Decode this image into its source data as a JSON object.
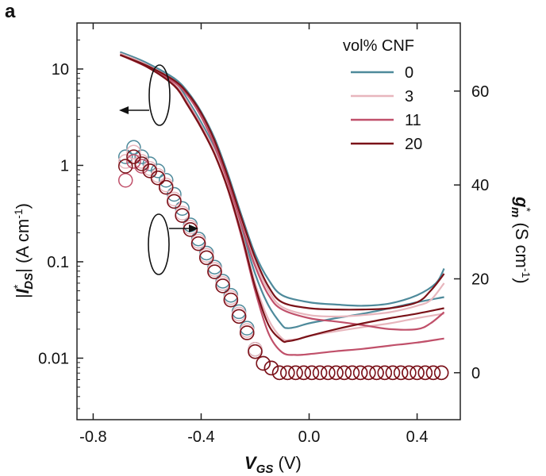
{
  "panel_label": "a",
  "chart_data": {
    "type": "line",
    "xlabel_symbol": "V",
    "xlabel_sub": "GS",
    "xlabel_unit": " (V)",
    "ylabel_left_prefix": "|",
    "ylabel_left_symbol": "I",
    "ylabel_left_sub": "DS",
    "ylabel_left_sup": "*",
    "ylabel_left_unit": "| (A cm",
    "ylabel_left_unit_exp": "-1",
    "ylabel_left_unit_close": ")",
    "ylabel_right_symbol": "g",
    "ylabel_right_sub": "m",
    "ylabel_right_sup": "*",
    "ylabel_right_unit": " (S cm",
    "ylabel_right_unit_exp": "-1",
    "ylabel_right_unit_close": ")",
    "x_ticks": [
      "-0.8",
      "-0.4",
      "0.0",
      "0.4"
    ],
    "x_tick_values": [
      -0.8,
      -0.4,
      0.0,
      0.4
    ],
    "y_left_ticks": [
      "10",
      "1",
      "0.1",
      "0.01"
    ],
    "y_left_tick_values": [
      10,
      1,
      0.1,
      0.01
    ],
    "y_right_ticks": [
      "60",
      "40",
      "20",
      "0"
    ],
    "y_right_tick_values": [
      60,
      40,
      20,
      0
    ],
    "xlim": [
      -0.86,
      0.56
    ],
    "ylim_left_log": [
      0.0023,
      30
    ],
    "y_left_scale": "log",
    "ylim_right": [
      -10,
      74.5
    ],
    "legend_title": "vol% CNF",
    "legend_position": "top-right",
    "series": [
      {
        "name": "0",
        "color": "#4e8a9b",
        "iv_fwd": [
          [
            -0.7,
            15
          ],
          [
            -0.6,
            11.5
          ],
          [
            -0.5,
            7.5
          ],
          [
            -0.45,
            4.8
          ],
          [
            -0.4,
            2.8
          ],
          [
            -0.35,
            1.5
          ],
          [
            -0.3,
            0.65
          ],
          [
            -0.25,
            0.22
          ],
          [
            -0.2,
            0.075
          ],
          [
            -0.15,
            0.035
          ],
          [
            -0.1,
            0.022
          ],
          [
            -0.08,
            0.0205
          ],
          [
            -0.05,
            0.021
          ],
          [
            0.0,
            0.023
          ],
          [
            0.1,
            0.026
          ],
          [
            0.2,
            0.029
          ],
          [
            0.3,
            0.033
          ],
          [
            0.4,
            0.038
          ],
          [
            0.5,
            0.043
          ]
        ],
        "iv_rev": [
          [
            0.5,
            0.085
          ],
          [
            0.47,
            0.06
          ],
          [
            0.4,
            0.045
          ],
          [
            0.3,
            0.037
          ],
          [
            0.2,
            0.035
          ],
          [
            0.1,
            0.036
          ],
          [
            0.0,
            0.038
          ],
          [
            -0.1,
            0.045
          ],
          [
            -0.15,
            0.065
          ],
          [
            -0.2,
            0.12
          ],
          [
            -0.25,
            0.3
          ],
          [
            -0.3,
            0.8
          ],
          [
            -0.35,
            1.9
          ],
          [
            -0.4,
            3.6
          ],
          [
            -0.45,
            5.8
          ],
          [
            -0.5,
            8
          ],
          [
            -0.6,
            11.5
          ],
          [
            -0.7,
            15
          ]
        ],
        "gm": [
          [
            -0.68,
            46
          ],
          [
            -0.65,
            48
          ],
          [
            -0.62,
            46
          ],
          [
            -0.59,
            44.5
          ],
          [
            -0.56,
            43
          ],
          [
            -0.53,
            41
          ],
          [
            -0.5,
            38
          ],
          [
            -0.47,
            35
          ],
          [
            -0.44,
            31.5
          ],
          [
            -0.41,
            28.5
          ],
          [
            -0.38,
            25.5
          ],
          [
            -0.35,
            22.5
          ],
          [
            -0.32,
            19.5
          ],
          [
            -0.29,
            16.5
          ],
          [
            -0.26,
            13
          ],
          [
            -0.23,
            9.5
          ],
          [
            -0.2,
            5
          ],
          [
            -0.17,
            2
          ],
          [
            -0.14,
            1
          ]
        ]
      },
      {
        "name": "3",
        "color": "#e7b6bd",
        "iv_fwd": [
          [
            -0.7,
            14.5
          ],
          [
            -0.6,
            11
          ],
          [
            -0.5,
            7
          ],
          [
            -0.45,
            4.5
          ],
          [
            -0.4,
            2.6
          ],
          [
            -0.35,
            1.4
          ],
          [
            -0.3,
            0.6
          ],
          [
            -0.25,
            0.2
          ],
          [
            -0.2,
            0.06
          ],
          [
            -0.15,
            0.025
          ],
          [
            -0.1,
            0.016
          ],
          [
            -0.07,
            0.0155
          ],
          [
            -0.03,
            0.016
          ],
          [
            0.0,
            0.017
          ],
          [
            0.1,
            0.019
          ],
          [
            0.2,
            0.021
          ],
          [
            0.3,
            0.023
          ],
          [
            0.4,
            0.026
          ],
          [
            0.5,
            0.029
          ]
        ],
        "iv_rev": [
          [
            0.5,
            0.06
          ],
          [
            0.45,
            0.04
          ],
          [
            0.4,
            0.035
          ],
          [
            0.3,
            0.03
          ],
          [
            0.2,
            0.028
          ],
          [
            0.1,
            0.027
          ],
          [
            0.0,
            0.028
          ],
          [
            -0.1,
            0.034
          ],
          [
            -0.15,
            0.05
          ],
          [
            -0.2,
            0.1
          ],
          [
            -0.25,
            0.26
          ],
          [
            -0.3,
            0.7
          ],
          [
            -0.35,
            1.7
          ],
          [
            -0.4,
            3.4
          ],
          [
            -0.45,
            5.5
          ],
          [
            -0.5,
            7.6
          ],
          [
            -0.6,
            11
          ],
          [
            -0.7,
            14.5
          ]
        ],
        "gm": [
          [
            -0.68,
            45
          ],
          [
            -0.65,
            47
          ],
          [
            -0.62,
            45
          ],
          [
            -0.59,
            43.5
          ],
          [
            -0.56,
            42
          ],
          [
            -0.53,
            40
          ],
          [
            -0.5,
            37
          ],
          [
            -0.47,
            34
          ],
          [
            -0.44,
            31
          ],
          [
            -0.41,
            28
          ],
          [
            -0.38,
            25
          ],
          [
            -0.35,
            22
          ],
          [
            -0.32,
            19
          ],
          [
            -0.29,
            16
          ],
          [
            -0.26,
            12.5
          ],
          [
            -0.23,
            9
          ],
          [
            -0.2,
            5
          ],
          [
            -0.17,
            2
          ],
          [
            -0.14,
            1
          ]
        ]
      },
      {
        "name": "11",
        "color": "#c0506a",
        "iv_fwd": [
          [
            -0.7,
            14
          ],
          [
            -0.6,
            10.5
          ],
          [
            -0.5,
            6.8
          ],
          [
            -0.45,
            4.3
          ],
          [
            -0.4,
            2.5
          ],
          [
            -0.35,
            1.3
          ],
          [
            -0.3,
            0.55
          ],
          [
            -0.25,
            0.18
          ],
          [
            -0.2,
            0.05
          ],
          [
            -0.15,
            0.018
          ],
          [
            -0.1,
            0.0115
          ],
          [
            -0.05,
            0.0108
          ],
          [
            0.0,
            0.011
          ],
          [
            0.1,
            0.0118
          ],
          [
            0.2,
            0.0125
          ],
          [
            0.3,
            0.0135
          ],
          [
            0.4,
            0.0145
          ],
          [
            0.5,
            0.016
          ]
        ],
        "iv_rev": [
          [
            0.5,
            0.03
          ],
          [
            0.45,
            0.023
          ],
          [
            0.4,
            0.02
          ],
          [
            0.3,
            0.02
          ],
          [
            0.2,
            0.022
          ],
          [
            0.1,
            0.024
          ],
          [
            0.0,
            0.026
          ],
          [
            -0.1,
            0.032
          ],
          [
            -0.15,
            0.045
          ],
          [
            -0.2,
            0.09
          ],
          [
            -0.25,
            0.24
          ],
          [
            -0.3,
            0.66
          ],
          [
            -0.35,
            1.6
          ],
          [
            -0.4,
            3.2
          ],
          [
            -0.45,
            5.3
          ],
          [
            -0.5,
            7.3
          ],
          [
            -0.6,
            10.5
          ],
          [
            -0.7,
            14
          ]
        ],
        "gm": [
          [
            -0.68,
            41
          ],
          [
            -0.65,
            45
          ],
          [
            -0.62,
            44
          ],
          [
            -0.59,
            43
          ],
          [
            -0.56,
            41.5
          ],
          [
            -0.53,
            39.5
          ],
          [
            -0.5,
            36.5
          ],
          [
            -0.47,
            33.5
          ],
          [
            -0.44,
            30.5
          ],
          [
            -0.41,
            27.5
          ],
          [
            -0.38,
            24.5
          ],
          [
            -0.35,
            21.5
          ],
          [
            -0.32,
            18.5
          ],
          [
            -0.29,
            15.5
          ],
          [
            -0.26,
            12
          ],
          [
            -0.23,
            8.5
          ],
          [
            -0.2,
            4.5
          ],
          [
            -0.17,
            2
          ],
          [
            -0.14,
            1
          ]
        ]
      },
      {
        "name": "20",
        "color": "#7a1218",
        "iv_fwd": [
          [
            -0.7,
            14
          ],
          [
            -0.6,
            10.5
          ],
          [
            -0.5,
            6.7
          ],
          [
            -0.45,
            4.2
          ],
          [
            -0.4,
            2.45
          ],
          [
            -0.35,
            1.3
          ],
          [
            -0.3,
            0.56
          ],
          [
            -0.25,
            0.19
          ],
          [
            -0.2,
            0.055
          ],
          [
            -0.15,
            0.022
          ],
          [
            -0.1,
            0.0152
          ],
          [
            -0.08,
            0.015
          ],
          [
            -0.05,
            0.0155
          ],
          [
            0.0,
            0.017
          ],
          [
            0.1,
            0.02
          ],
          [
            0.2,
            0.023
          ],
          [
            0.3,
            0.026
          ],
          [
            0.4,
            0.029
          ],
          [
            0.5,
            0.033
          ]
        ],
        "iv_rev": [
          [
            0.5,
            0.075
          ],
          [
            0.45,
            0.05
          ],
          [
            0.4,
            0.038
          ],
          [
            0.3,
            0.033
          ],
          [
            0.2,
            0.032
          ],
          [
            0.1,
            0.032
          ],
          [
            0.0,
            0.033
          ],
          [
            -0.1,
            0.038
          ],
          [
            -0.15,
            0.055
          ],
          [
            -0.2,
            0.11
          ],
          [
            -0.25,
            0.28
          ],
          [
            -0.3,
            0.75
          ],
          [
            -0.35,
            1.8
          ],
          [
            -0.4,
            3.5
          ],
          [
            -0.45,
            5.6
          ],
          [
            -0.5,
            7.6
          ],
          [
            -0.6,
            10.8
          ],
          [
            -0.7,
            14
          ]
        ],
        "gm": [
          [
            -0.68,
            44
          ],
          [
            -0.65,
            46
          ],
          [
            -0.62,
            44.5
          ],
          [
            -0.59,
            43
          ],
          [
            -0.56,
            41.5
          ],
          [
            -0.53,
            39.5
          ],
          [
            -0.5,
            36.5
          ],
          [
            -0.47,
            33.5
          ],
          [
            -0.44,
            30.5
          ],
          [
            -0.41,
            27.5
          ],
          [
            -0.38,
            24.5
          ],
          [
            -0.35,
            21.5
          ],
          [
            -0.32,
            18.5
          ],
          [
            -0.29,
            15.5
          ],
          [
            -0.26,
            12
          ],
          [
            -0.23,
            8.5
          ],
          [
            -0.2,
            4.5
          ],
          [
            -0.17,
            2
          ],
          [
            -0.14,
            1
          ]
        ]
      }
    ],
    "gm_flat_x": [
      -0.11,
      -0.08,
      -0.05,
      -0.02,
      0.01,
      0.04,
      0.07,
      0.1,
      0.13,
      0.16,
      0.19,
      0.22,
      0.25,
      0.28,
      0.31,
      0.34,
      0.37,
      0.4,
      0.43,
      0.46,
      0.49
    ],
    "gm_flat_value": 0
  }
}
